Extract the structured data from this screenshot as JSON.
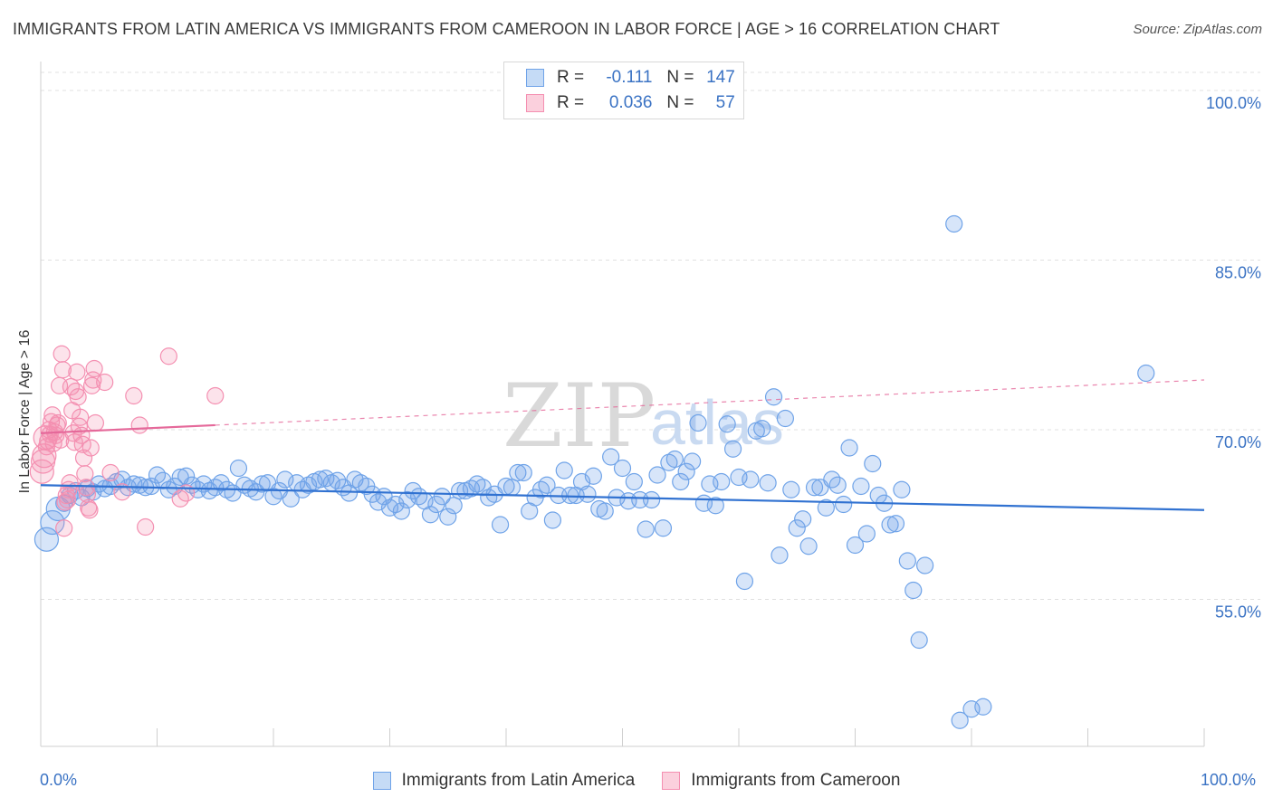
{
  "header": {
    "title": "IMMIGRANTS FROM LATIN AMERICA VS IMMIGRANTS FROM CAMEROON IN LABOR FORCE | AGE > 16 CORRELATION CHART",
    "source": "Source: ZipAtlas.com"
  },
  "legend": {
    "r_label": "R =",
    "n_label": "N =",
    "rows": [
      {
        "r": "-0.111",
        "n": "147",
        "color": "#6fa3e8"
      },
      {
        "r": "0.036",
        "n": "57",
        "color": "#f48fb1"
      }
    ]
  },
  "watermark": {
    "zip": "ZIP",
    "atlas": "atlas"
  },
  "chart_data": {
    "type": "scatter",
    "ylabel": "In Labor Force | Age > 16",
    "xlim": [
      0,
      100
    ],
    "ylim": [
      42,
      102
    ],
    "x_tick_labels": [
      "0.0%",
      "100.0%"
    ],
    "y_ticks": [
      {
        "value": 100,
        "label": "100.0%"
      },
      {
        "value": 85,
        "label": "85.0%"
      },
      {
        "value": 70,
        "label": "70.0%"
      },
      {
        "value": 55,
        "label": "55.0%"
      }
    ],
    "series": [
      {
        "name": "Immigrants from Latin America",
        "color": "#6fa3e8",
        "trend": {
          "x0": 0,
          "y0": 65.1,
          "x1": 100,
          "y1": 62.9,
          "dashed_from": null
        },
        "points": [
          [
            0.5,
            60.3
          ],
          [
            1,
            61.8
          ],
          [
            1.5,
            63
          ],
          [
            2,
            63.5
          ],
          [
            2.5,
            64.2
          ],
          [
            3,
            64.6
          ],
          [
            3.5,
            64
          ],
          [
            4,
            64.8
          ],
          [
            4.5,
            64.5
          ],
          [
            5,
            65.2
          ],
          [
            5.5,
            64.8
          ],
          [
            6,
            65
          ],
          [
            6.5,
            65.4
          ],
          [
            7,
            65.6
          ],
          [
            7.5,
            64.9
          ],
          [
            8,
            65.2
          ],
          [
            8.5,
            65.1
          ],
          [
            9,
            64.9
          ],
          [
            9.5,
            65
          ],
          [
            10,
            66
          ],
          [
            10.5,
            65.5
          ],
          [
            11,
            64.7
          ],
          [
            11.5,
            65
          ],
          [
            12,
            65.8
          ],
          [
            12.5,
            65.9
          ],
          [
            13,
            65.1
          ],
          [
            13.5,
            64.7
          ],
          [
            14,
            65.2
          ],
          [
            14.5,
            64.6
          ],
          [
            15,
            64.9
          ],
          [
            15.5,
            65.3
          ],
          [
            16,
            64.7
          ],
          [
            16.5,
            64.4
          ],
          [
            17,
            66.6
          ],
          [
            17.5,
            65.1
          ],
          [
            18,
            64.8
          ],
          [
            18.5,
            64.5
          ],
          [
            19,
            65.2
          ],
          [
            19.5,
            65.3
          ],
          [
            20,
            64.1
          ],
          [
            20.5,
            64.6
          ],
          [
            21,
            65.6
          ],
          [
            21.5,
            63.9
          ],
          [
            22,
            65.3
          ],
          [
            22.5,
            64.7
          ],
          [
            23,
            65.1
          ],
          [
            23.5,
            65.4
          ],
          [
            24,
            65.6
          ],
          [
            24.5,
            65.7
          ],
          [
            25,
            65.3
          ],
          [
            25.5,
            65.5
          ],
          [
            26,
            64.9
          ],
          [
            26.5,
            64.4
          ],
          [
            27,
            65.6
          ],
          [
            27.5,
            65.3
          ],
          [
            28,
            65
          ],
          [
            28.5,
            64.3
          ],
          [
            29,
            63.6
          ],
          [
            29.5,
            64.1
          ],
          [
            30,
            63.1
          ],
          [
            30.5,
            63.4
          ],
          [
            31,
            62.8
          ],
          [
            31.5,
            63.8
          ],
          [
            32,
            64.6
          ],
          [
            32.5,
            64.1
          ],
          [
            33,
            63.7
          ],
          [
            33.5,
            62.5
          ],
          [
            34,
            63.4
          ],
          [
            34.5,
            64.1
          ],
          [
            35,
            62.3
          ],
          [
            35.5,
            63.3
          ],
          [
            36,
            64.6
          ],
          [
            36.5,
            64.6
          ],
          [
            37,
            64.8
          ],
          [
            37.5,
            65.2
          ],
          [
            38,
            64.9
          ],
          [
            38.5,
            64
          ],
          [
            39,
            64.3
          ],
          [
            39.5,
            61.6
          ],
          [
            40,
            65
          ],
          [
            40.5,
            64.9
          ],
          [
            41,
            66.2
          ],
          [
            41.5,
            66.2
          ],
          [
            42,
            62.8
          ],
          [
            42.5,
            64
          ],
          [
            43,
            64.7
          ],
          [
            43.5,
            65.1
          ],
          [
            44,
            62
          ],
          [
            44.5,
            64.2
          ],
          [
            45,
            66.4
          ],
          [
            45.5,
            64.2
          ],
          [
            46,
            64.2
          ],
          [
            46.5,
            65.4
          ],
          [
            47,
            64.3
          ],
          [
            47.5,
            65.9
          ],
          [
            48,
            63
          ],
          [
            48.5,
            62.8
          ],
          [
            49,
            67.6
          ],
          [
            49.5,
            64
          ],
          [
            50,
            66.6
          ],
          [
            50.5,
            63.7
          ],
          [
            51,
            65.4
          ],
          [
            51.5,
            63.8
          ],
          [
            52,
            61.2
          ],
          [
            52.5,
            63.8
          ],
          [
            53,
            66
          ],
          [
            53.5,
            61.3
          ],
          [
            54,
            67.1
          ],
          [
            54.5,
            67.4
          ],
          [
            55,
            65.4
          ],
          [
            55.5,
            66.3
          ],
          [
            56,
            67.2
          ],
          [
            56.5,
            70.6
          ],
          [
            57,
            63.5
          ],
          [
            57.5,
            65.2
          ],
          [
            58,
            63.3
          ],
          [
            58.5,
            65.4
          ],
          [
            59,
            70.5
          ],
          [
            59.5,
            68.3
          ],
          [
            60,
            65.8
          ],
          [
            60.5,
            56.6
          ],
          [
            61,
            65.6
          ],
          [
            61.5,
            69.9
          ],
          [
            62,
            70.1
          ],
          [
            62.5,
            65.3
          ],
          [
            63,
            72.9
          ],
          [
            63.5,
            58.9
          ],
          [
            64,
            71
          ],
          [
            64.5,
            64.7
          ],
          [
            65,
            61.3
          ],
          [
            65.5,
            62.1
          ],
          [
            66,
            59.7
          ],
          [
            66.5,
            64.9
          ],
          [
            67,
            64.9
          ],
          [
            67.5,
            63.1
          ],
          [
            68,
            65.6
          ],
          [
            68.5,
            65.1
          ],
          [
            69,
            63.4
          ],
          [
            69.5,
            68.4
          ],
          [
            70,
            59.8
          ],
          [
            70.5,
            65
          ],
          [
            71,
            60.8
          ],
          [
            71.5,
            67
          ],
          [
            72,
            64.2
          ],
          [
            72.5,
            63.5
          ],
          [
            73,
            61.6
          ],
          [
            73.5,
            61.7
          ],
          [
            74,
            64.7
          ],
          [
            74.5,
            58.4
          ],
          [
            75,
            55.8
          ],
          [
            75.5,
            51.4
          ],
          [
            76,
            58
          ],
          [
            78.5,
            88.2
          ],
          [
            79,
            44.3
          ],
          [
            80,
            45.3
          ],
          [
            81,
            45.5
          ],
          [
            95,
            75
          ]
        ]
      },
      {
        "name": "Immigrants from Cameroon",
        "color": "#f48fb1",
        "trend": {
          "x0": 0,
          "y0": 69.7,
          "x1": 100,
          "y1": 74.4,
          "dashed_from": 15
        },
        "points": [
          [
            0.1,
            66.3
          ],
          [
            0.2,
            67.2
          ],
          [
            0.3,
            67.7
          ],
          [
            0.4,
            69.3
          ],
          [
            0.5,
            68.5
          ],
          [
            0.6,
            69
          ],
          [
            0.7,
            70
          ],
          [
            0.8,
            69.6
          ],
          [
            0.9,
            70.7
          ],
          [
            1.0,
            71.3
          ],
          [
            1.1,
            68.8
          ],
          [
            1.2,
            69.8
          ],
          [
            1.3,
            69.5
          ],
          [
            1.4,
            70.4
          ],
          [
            1.5,
            70.6
          ],
          [
            1.6,
            73.9
          ],
          [
            1.7,
            69.1
          ],
          [
            1.8,
            76.7
          ],
          [
            1.9,
            75.3
          ],
          [
            2.0,
            61.3
          ],
          [
            2.1,
            63.6
          ],
          [
            2.2,
            64.2
          ],
          [
            2.3,
            63.8
          ],
          [
            2.4,
            64.7
          ],
          [
            2.5,
            65.3
          ],
          [
            2.6,
            73.8
          ],
          [
            2.7,
            71.7
          ],
          [
            2.8,
            69.7
          ],
          [
            2.9,
            68.9
          ],
          [
            3.0,
            73.4
          ],
          [
            3.1,
            75.1
          ],
          [
            3.2,
            72.9
          ],
          [
            3.3,
            70.3
          ],
          [
            3.4,
            71.1
          ],
          [
            3.5,
            69.5
          ],
          [
            3.6,
            68.7
          ],
          [
            3.7,
            67.5
          ],
          [
            3.8,
            66.1
          ],
          [
            3.9,
            64.9
          ],
          [
            4.0,
            64.3
          ],
          [
            4.1,
            63.1
          ],
          [
            4.2,
            62.9
          ],
          [
            4.3,
            68.4
          ],
          [
            4.4,
            73.9
          ],
          [
            4.5,
            74.4
          ],
          [
            4.6,
            75.4
          ],
          [
            4.7,
            70.6
          ],
          [
            5.5,
            74.2
          ],
          [
            6,
            66.2
          ],
          [
            7,
            64.5
          ],
          [
            8,
            73
          ],
          [
            8.5,
            70.4
          ],
          [
            9,
            61.4
          ],
          [
            11,
            76.5
          ],
          [
            12,
            63.9
          ],
          [
            12.5,
            64.4
          ],
          [
            15,
            73
          ]
        ]
      }
    ]
  }
}
